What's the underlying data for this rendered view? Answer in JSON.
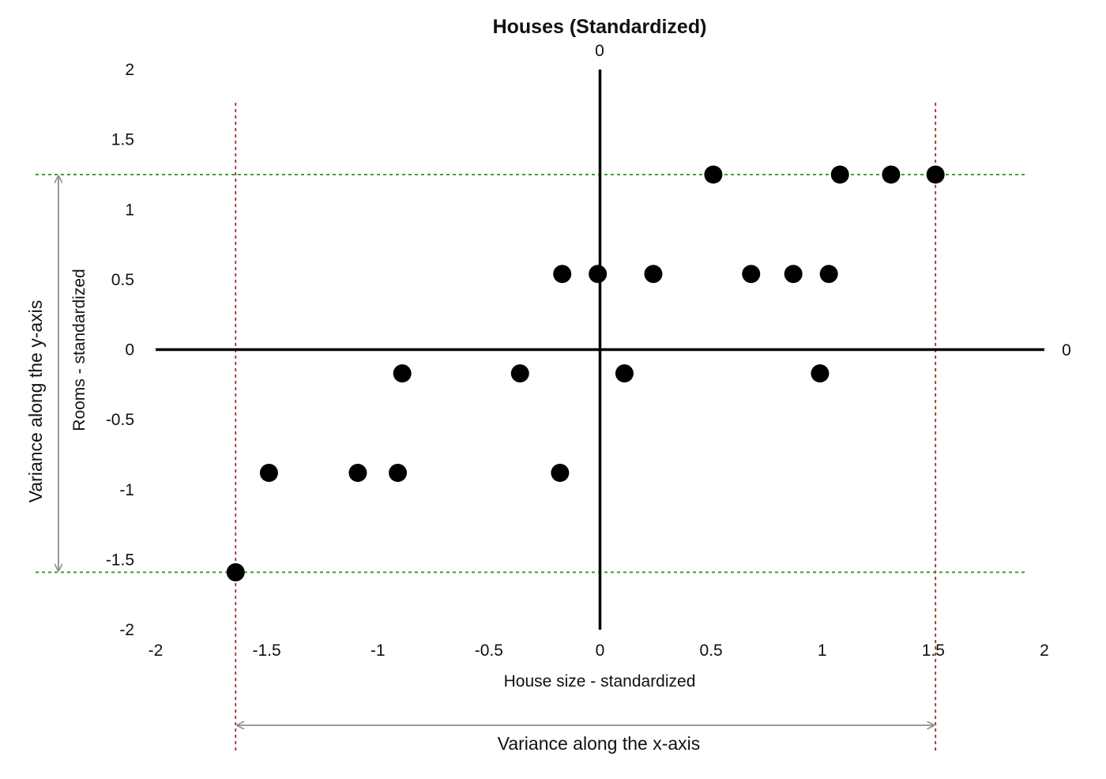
{
  "chart_data": {
    "type": "scatter",
    "title": "Houses (Standardized)",
    "xlabel": "House size - standardized",
    "ylabel": "Rooms - standardized",
    "xlim": [
      -2,
      2
    ],
    "ylim": [
      -2,
      2
    ],
    "x_ticks": [
      "-2",
      "-1.5",
      "-1",
      "-0.5",
      "0",
      "0.5",
      "1",
      "1.5",
      "2"
    ],
    "y_ticks": [
      "2",
      "1.5",
      "1",
      "0.5",
      "0",
      "-0.5",
      "-1",
      "-1.5",
      "-2"
    ],
    "origin_label_top": "0",
    "origin_label_right": "0",
    "points": [
      {
        "x": -1.64,
        "y": -1.59
      },
      {
        "x": -1.49,
        "y": -0.88
      },
      {
        "x": -1.09,
        "y": -0.88
      },
      {
        "x": -0.91,
        "y": -0.88
      },
      {
        "x": -0.18,
        "y": -0.88
      },
      {
        "x": -0.89,
        "y": -0.17
      },
      {
        "x": -0.36,
        "y": -0.17
      },
      {
        "x": 0.11,
        "y": -0.17
      },
      {
        "x": 0.99,
        "y": -0.17
      },
      {
        "x": -0.17,
        "y": 0.54
      },
      {
        "x": -0.01,
        "y": 0.54
      },
      {
        "x": 0.24,
        "y": 0.54
      },
      {
        "x": 0.68,
        "y": 0.54
      },
      {
        "x": 0.87,
        "y": 0.54
      },
      {
        "x": 1.03,
        "y": 0.54
      },
      {
        "x": 0.51,
        "y": 1.25
      },
      {
        "x": 1.08,
        "y": 1.25
      },
      {
        "x": 1.31,
        "y": 1.25
      },
      {
        "x": 1.51,
        "y": 1.25
      }
    ],
    "variance_x": {
      "label": "Variance along the x-axis",
      "min": -1.64,
      "max": 1.51
    },
    "variance_y": {
      "label": "Variance along the y-axis",
      "min": -1.59,
      "max": 1.25
    },
    "grid": false,
    "colors": {
      "points": "#000000",
      "axes": "#000000",
      "x_extent_lines": "#a0302a",
      "y_extent_lines": "#2e9a2e",
      "variance_arrows": "#8a8f88",
      "text": "#111111"
    }
  }
}
